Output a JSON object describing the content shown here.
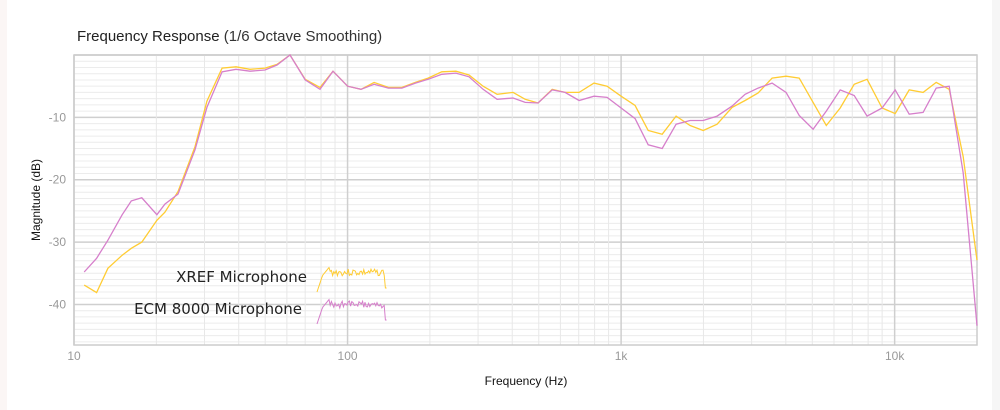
{
  "chart_data": {
    "type": "line",
    "title": "Frequency Response",
    "subtitle": "(1/6 Octave Smoothing)",
    "xlabel": "Frequency (Hz)",
    "ylabel": "Magnitude (dB)",
    "xscale": "log",
    "xlim": [
      10,
      20000
    ],
    "ylim": [
      -46.5,
      0
    ],
    "xticks": [
      {
        "v": 10,
        "label": "10"
      },
      {
        "v": 100,
        "label": "100"
      },
      {
        "v": 1000,
        "label": "1k"
      },
      {
        "v": 10000,
        "label": "10k"
      }
    ],
    "yticks": [
      {
        "v": -10,
        "label": "-10"
      },
      {
        "v": -20,
        "label": "-20"
      },
      {
        "v": -30,
        "label": "-30"
      },
      {
        "v": -40,
        "label": "-40"
      }
    ],
    "grid": true,
    "legend": "inline-bottom-left",
    "x": [
      10.9,
      12.1,
      13.3,
      15,
      16.2,
      17.7,
      20.1,
      21.5,
      24,
      27.7,
      30.6,
      34.8,
      39.1,
      44,
      49.9,
      55.2,
      61.6,
      70,
      79.3,
      88.5,
      100,
      112,
      125,
      141,
      158,
      177,
      197,
      221,
      249,
      278,
      313,
      352,
      403,
      446,
      497,
      560,
      624,
      702,
      796,
      889,
      1000,
      1125,
      1256,
      1413,
      1589,
      1787,
      1995,
      2244,
      2545,
      2841,
      3168,
      3565,
      4009,
      4477,
      5035,
      5623,
      6324,
      7112,
      7930,
      8994,
      10046,
      11298,
      12705,
      14191,
      15826,
      17800,
      20000
    ],
    "series": [
      {
        "name": "XREF Microphone",
        "color": "#ffcc33",
        "values": [
          -36.9,
          -38.1,
          -34.2,
          -32.1,
          -31.0,
          -30.0,
          -26.5,
          -25.2,
          -21.9,
          -14.7,
          -7.4,
          -2.1,
          -1.9,
          -2.3,
          -2.1,
          -1.5,
          0,
          -3.9,
          -5.2,
          -2.6,
          -5.0,
          -5.5,
          -4.4,
          -5.2,
          -5.2,
          -4.4,
          -3.7,
          -2.7,
          -2.6,
          -3.2,
          -5.0,
          -6.3,
          -6.0,
          -7.1,
          -7.7,
          -5.5,
          -6.0,
          -6.0,
          -4.5,
          -5.0,
          -6.6,
          -8.1,
          -12.1,
          -12.7,
          -9.8,
          -11.3,
          -12.1,
          -11.1,
          -8.4,
          -7.3,
          -6.1,
          -3.7,
          -3.4,
          -3.7,
          -7.6,
          -11.3,
          -8.5,
          -4.7,
          -3.9,
          -8.5,
          -9.4,
          -5.6,
          -6.0,
          -4.4,
          -5.5,
          -16.3,
          -32.9
        ]
      },
      {
        "name": "ECM 8000 Microphone",
        "color": "#d67fcb",
        "values": [
          -34.8,
          -32.6,
          -29.7,
          -25.6,
          -23.4,
          -22.9,
          -25.6,
          -23.9,
          -22.3,
          -15.2,
          -8.4,
          -2.7,
          -2.3,
          -2.6,
          -2.4,
          -1.6,
          0,
          -4.0,
          -5.5,
          -2.6,
          -5.0,
          -5.5,
          -4.7,
          -5.3,
          -5.3,
          -4.5,
          -3.9,
          -3.1,
          -2.9,
          -3.5,
          -5.5,
          -7.1,
          -6.9,
          -7.6,
          -7.7,
          -5.6,
          -6.0,
          -7.3,
          -6.6,
          -6.8,
          -8.5,
          -10.2,
          -14.4,
          -15.0,
          -11.1,
          -10.5,
          -10.5,
          -9.8,
          -8.2,
          -6.3,
          -5.3,
          -4.5,
          -6.0,
          -9.7,
          -11.9,
          -9.0,
          -5.6,
          -6.5,
          -9.8,
          -8.5,
          -5.6,
          -9.5,
          -9.2,
          -5.3,
          -5.0,
          -18.9,
          -43.4
        ]
      }
    ]
  }
}
